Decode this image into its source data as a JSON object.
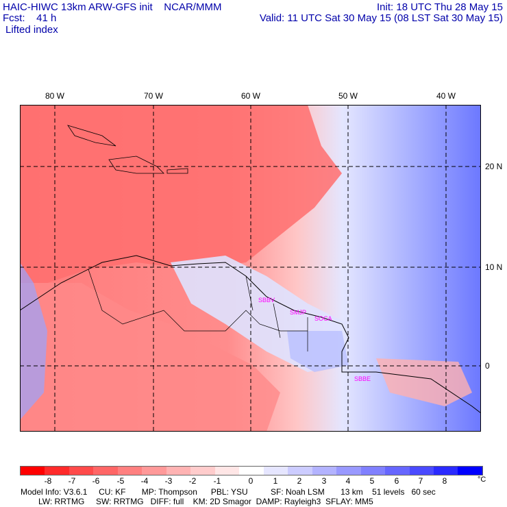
{
  "header": {
    "line1_left": "HAIC-HIWC 13km ARW-GFS init    NCAR/MMM",
    "line2_left": "Fcst:    41 h",
    "line3_left": "Lifted index",
    "line1_right": "Init: 18 UTC Thu 28 May 15",
    "line2_right": "Valid: 11 UTC Sat 30 May 15 (08 LST Sat 30 May 15)"
  },
  "map": {
    "lon_labels": [
      "80 W",
      "70 W",
      "60 W",
      "50 W",
      "40 W"
    ],
    "lat_labels": [
      "20 N",
      "10 N",
      "0"
    ],
    "station_labels": [
      "SBBV",
      "SMJP",
      "SOCA",
      "SBBE"
    ],
    "colors": {
      "frame": "#000000",
      "station": "#ff00ff",
      "grid": "#000000"
    }
  },
  "colorbar": {
    "ticks": [
      "-8",
      "-7",
      "-6",
      "-5",
      "-4",
      "-3",
      "-2",
      "-1",
      "0",
      "1",
      "2",
      "3",
      "4",
      "5",
      "6",
      "7",
      "8"
    ],
    "unit": "°C",
    "colors": [
      "#ff0000",
      "#ff2a2a",
      "#ff4a4a",
      "#ff6666",
      "#ff8080",
      "#ff9999",
      "#ffb3b3",
      "#ffcccc",
      "#ffe6e6",
      "#ffffff",
      "#e6e6ff",
      "#ccccff",
      "#b3b3ff",
      "#9999ff",
      "#8080ff",
      "#6666ff",
      "#4a4aff",
      "#2a2aff",
      "#0000ff"
    ]
  },
  "model_info": {
    "line1": "Model Info: V3.6.1     CU: KF       MP: Thompson      PBL: YSU          SF: Noah LSM       13 km    51 levels   60 sec",
    "line2": "LW: RRTMG     SW: RRTMG   DIFF: full    KM: 2D Smagor  DAMP: Rayleigh3  SFLAY: MM5"
  }
}
